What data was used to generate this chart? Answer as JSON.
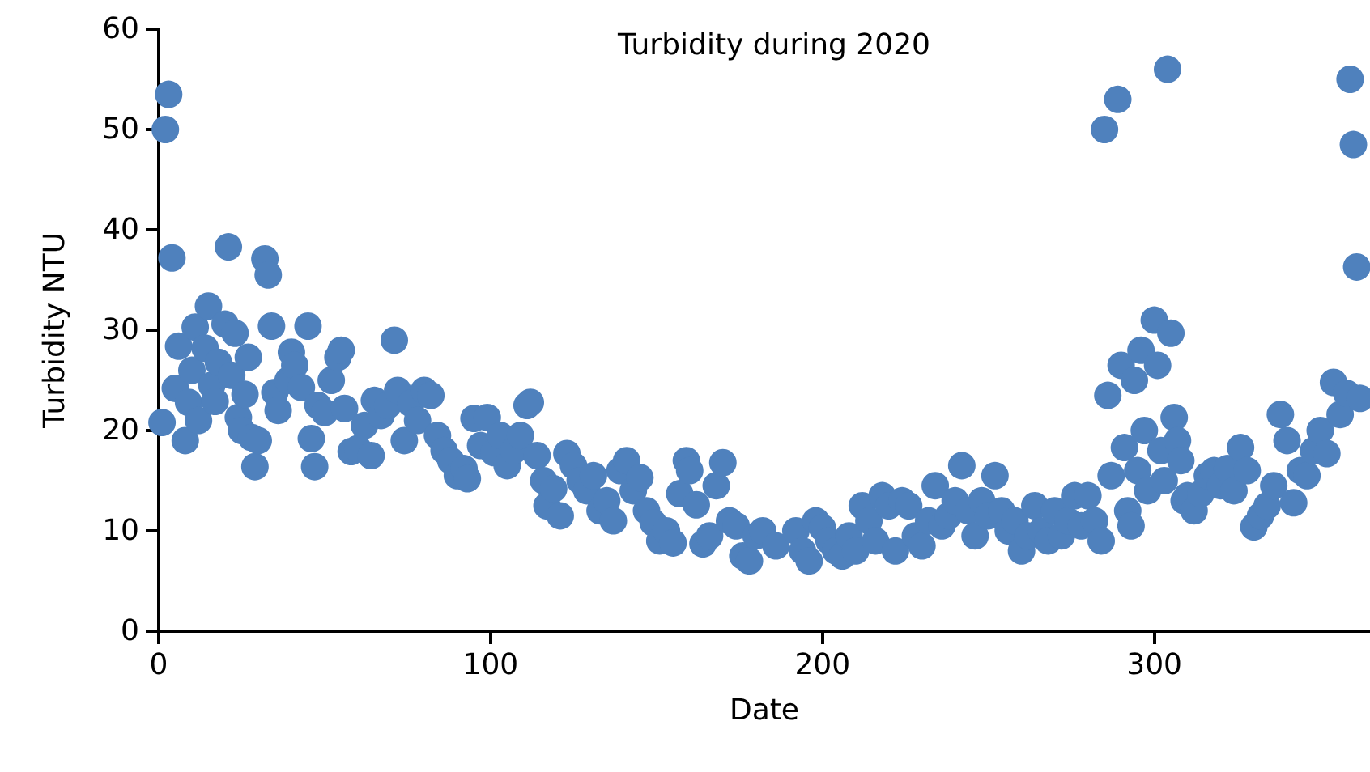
{
  "chart_data": {
    "type": "scatter",
    "title": "Turbidity during 2020",
    "xlabel": "Date",
    "ylabel": "Turbidity NTU",
    "x": [
      1,
      2,
      3,
      4,
      5,
      6,
      8,
      9,
      10,
      11,
      12,
      14,
      15,
      16,
      17,
      18,
      20,
      21,
      22,
      23,
      24,
      25,
      26,
      27,
      28,
      29,
      30,
      32,
      33,
      34,
      35,
      36,
      39,
      40,
      41,
      43,
      45,
      46,
      47,
      48,
      50,
      52,
      54,
      55,
      56,
      58,
      60,
      62,
      64,
      65,
      67,
      69,
      71,
      72,
      74,
      76,
      78,
      80,
      82,
      84,
      86,
      88,
      90,
      92,
      93,
      95,
      97,
      99,
      101,
      103,
      105,
      107,
      109,
      111,
      112,
      114,
      116,
      117,
      119,
      121,
      123,
      125,
      127,
      129,
      131,
      133,
      135,
      137,
      139,
      141,
      143,
      145,
      147,
      149,
      151,
      153,
      155,
      157,
      159,
      160,
      162,
      164,
      166,
      168,
      170,
      172,
      174,
      176,
      178,
      180,
      182,
      186,
      192,
      194,
      196,
      198,
      200,
      202,
      204,
      206,
      208,
      210,
      212,
      214,
      216,
      218,
      220,
      222,
      224,
      226,
      228,
      230,
      232,
      234,
      236,
      238,
      240,
      242,
      244,
      246,
      248,
      250,
      252,
      254,
      256,
      258,
      260,
      262,
      264,
      266,
      268,
      270,
      272,
      274,
      276,
      278,
      280,
      282,
      284,
      285,
      286,
      287,
      289,
      290,
      291,
      292,
      293,
      294,
      295,
      296,
      297,
      298,
      300,
      301,
      302,
      303,
      304,
      305,
      306,
      307,
      308,
      309,
      310,
      312,
      314,
      316,
      318,
      320,
      322,
      324,
      326,
      328,
      330,
      332,
      334,
      336,
      338,
      340,
      342,
      344,
      346,
      348,
      350,
      352,
      354,
      356,
      358,
      359,
      360,
      361,
      362
    ],
    "values": [
      20.8,
      50,
      53.5,
      37.2,
      24.2,
      28.4,
      19,
      22.8,
      26,
      30.3,
      21,
      28.2,
      32.4,
      24.5,
      22.9,
      26.8,
      30.6,
      38.3,
      25.5,
      29.7,
      21.3,
      20,
      23.6,
      27.3,
      19.3,
      16.4,
      19,
      37.1,
      35.5,
      30.4,
      23.8,
      22,
      25,
      27.8,
      26.5,
      24.3,
      30.4,
      19.2,
      16.4,
      22.5,
      21.8,
      25,
      27.3,
      28,
      22.2,
      17.9,
      18.2,
      20.5,
      17.5,
      23,
      21.5,
      22.5,
      29,
      24,
      19,
      22.7,
      21,
      24,
      23.5,
      19.5,
      18,
      17,
      15.5,
      16.2,
      15.2,
      21.2,
      18.5,
      21.3,
      17.8,
      19.5,
      16.5,
      18,
      19.5,
      22.5,
      22.8,
      17.5,
      15,
      12.5,
      14.2,
      11.5,
      17.7,
      16.5,
      15,
      14,
      15.5,
      12,
      13,
      11,
      16,
      17,
      14,
      15.3,
      12,
      10.8,
      9,
      10,
      8.8,
      13.7,
      17,
      16,
      12.6,
      8.7,
      9.5,
      14.5,
      16.8,
      11,
      10.5,
      7.5,
      7,
      9.5,
      10,
      8.5,
      10,
      8,
      7,
      11,
      10.3,
      9,
      8,
      7.5,
      9.5,
      8,
      12.5,
      11,
      9,
      13.5,
      12.5,
      8,
      13,
      12.5,
      9.5,
      8.5,
      11,
      14.5,
      10.5,
      11.5,
      13,
      16.5,
      12,
      9.5,
      13,
      11.5,
      15.5,
      12,
      10,
      11,
      8,
      9.5,
      12.5,
      10,
      9,
      12,
      9.5,
      11,
      13.5,
      10.5,
      13.5,
      11,
      9,
      50,
      23.5,
      15.5,
      53,
      26.5,
      18.3,
      12,
      10.5,
      25,
      16,
      28,
      20,
      14,
      31,
      26.5,
      18,
      15,
      56,
      29.7,
      21.3,
      19,
      17,
      13,
      13.5,
      12,
      13.7,
      15.5,
      16,
      14.5,
      16.2,
      14,
      18.3,
      16,
      10.4,
      11.5,
      12.5,
      14.5,
      21.6,
      19,
      12.8,
      16,
      15.5,
      18,
      20,
      17.7,
      24.8,
      21.6,
      23.7,
      55,
      48.5,
      36.3,
      23.2
    ],
    "color": "#4f81bd",
    "marker": "circle",
    "grid": false,
    "xlim": [
      0,
      365
    ],
    "xticks": [
      0,
      100,
      200,
      300
    ],
    "ylim": [
      0,
      60
    ],
    "yticks": [
      0,
      10,
      20,
      30,
      40,
      50,
      60
    ]
  }
}
